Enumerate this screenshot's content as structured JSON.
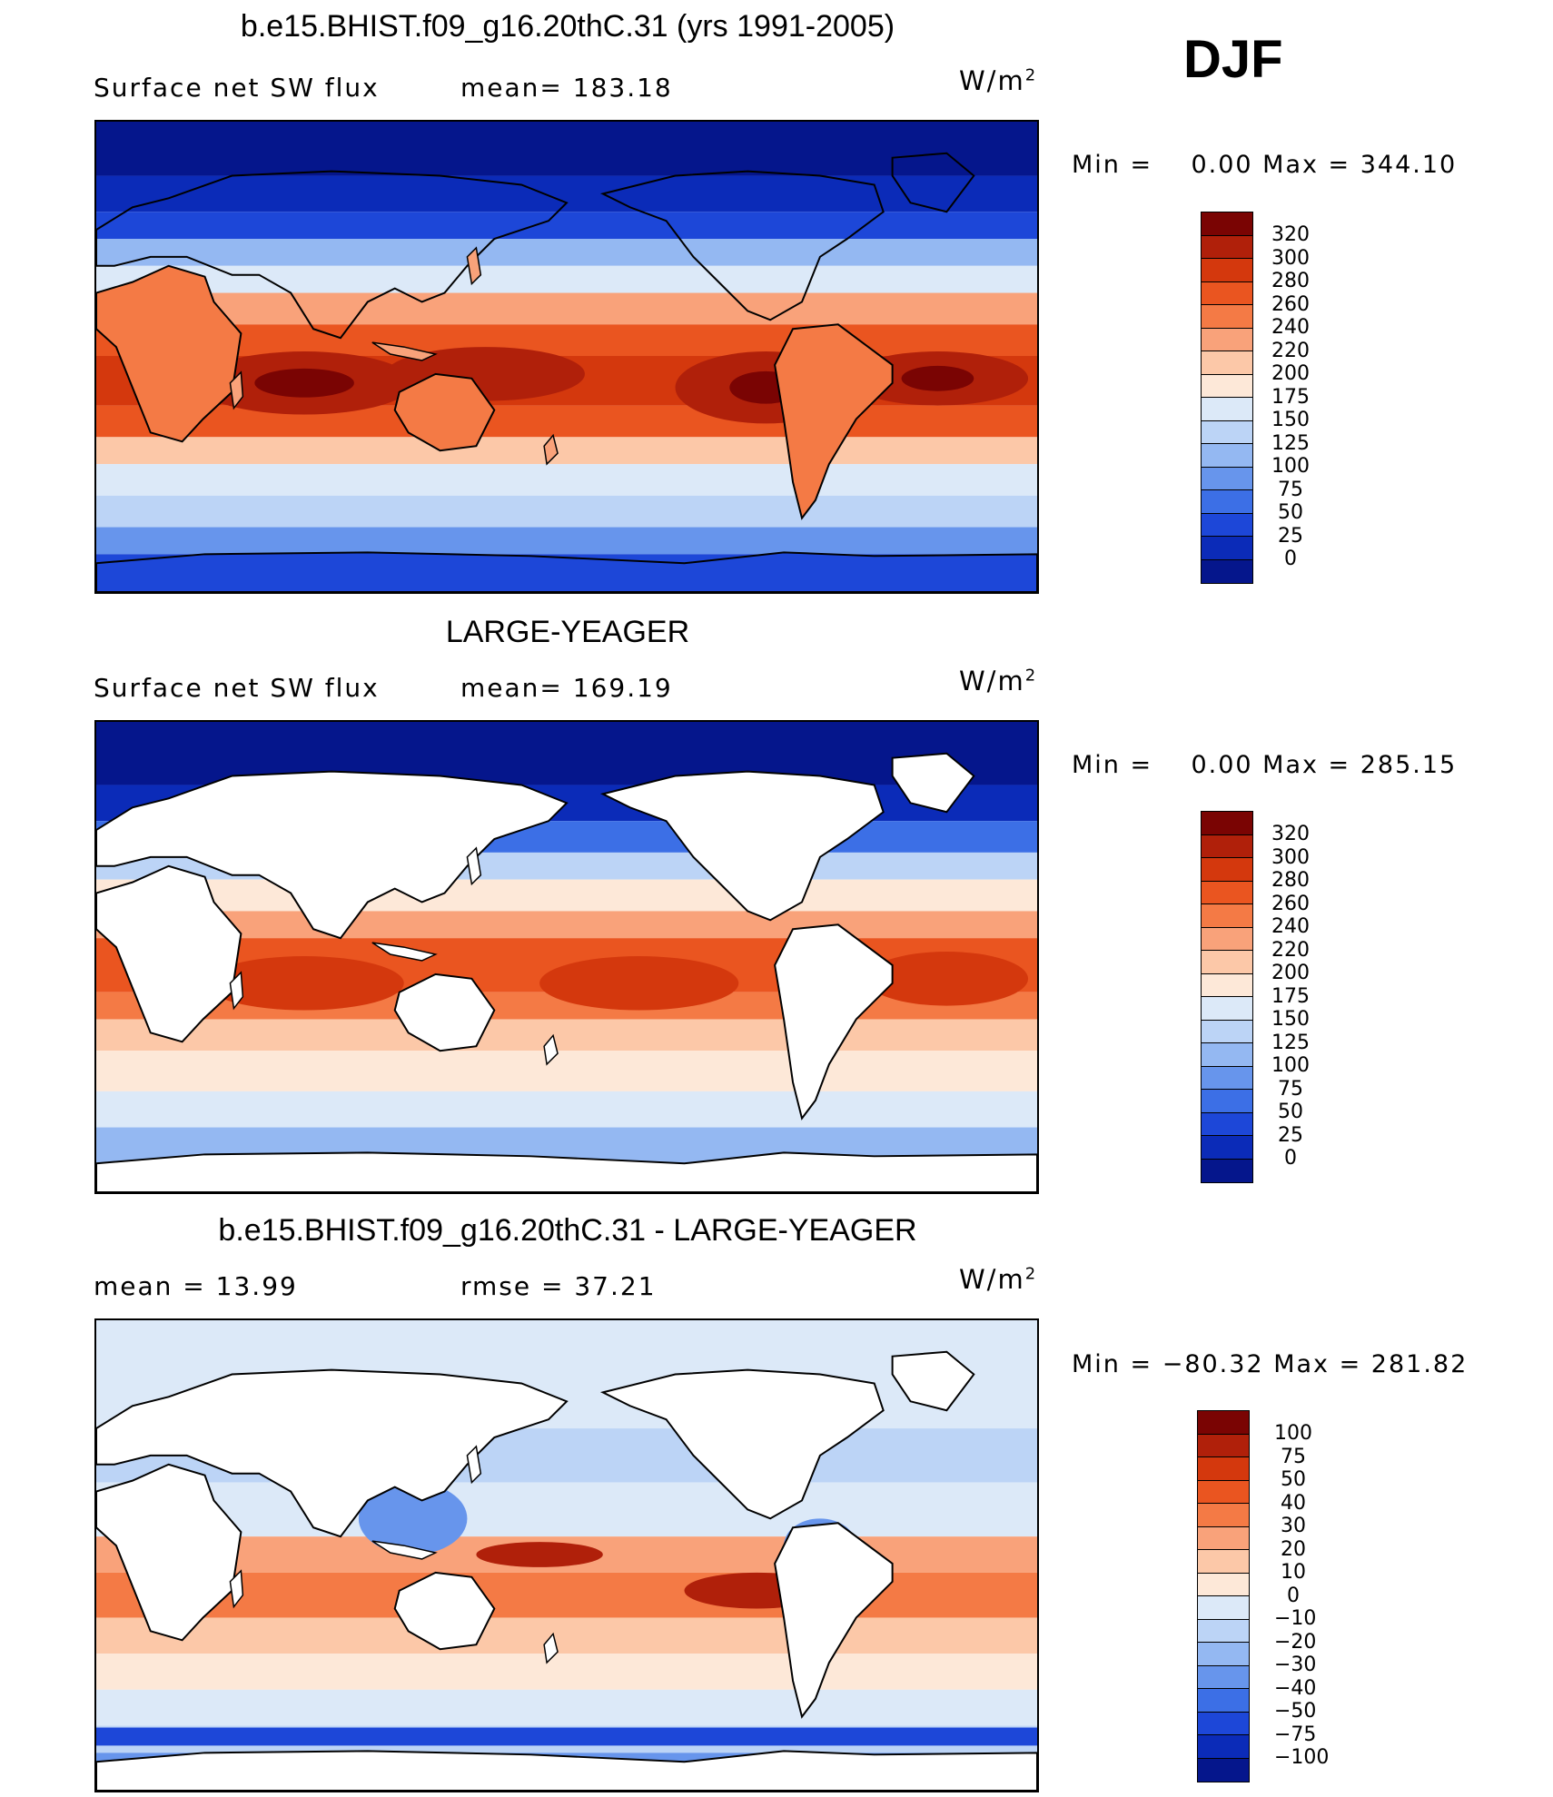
{
  "season": "DJF",
  "panels": [
    {
      "title": "b.e15.BHIST.f09_g16.20thC.31 (yrs 1991-2005)",
      "left_text": "Surface net SW flux",
      "mid_text": "mean= 183.18",
      "units_base": "W/m",
      "units_exp": "2",
      "minmax": "Min =    0.00 Max = 344.10",
      "map_kind": "model"
    },
    {
      "title": "LARGE-YEAGER",
      "left_text": "Surface net SW flux",
      "mid_text": "mean= 169.19",
      "units_base": "W/m",
      "units_exp": "2",
      "minmax": "Min =    0.00 Max = 285.15",
      "map_kind": "obs"
    },
    {
      "title": "b.e15.BHIST.f09_g16.20thC.31 - LARGE-YEAGER",
      "left_text": "mean =   13.99",
      "mid_text": "rmse =   37.21",
      "units_base": "W/m",
      "units_exp": "2",
      "minmax": "Min = −80.32 Max = 281.82",
      "map_kind": "diff"
    }
  ],
  "colorbars": {
    "absolute": {
      "labels": [
        "320",
        "300",
        "280",
        "260",
        "240",
        "220",
        "200",
        "175",
        "150",
        "125",
        "100",
        "75",
        "50",
        "25",
        "0"
      ],
      "colors": [
        "#7a0403",
        "#b0200a",
        "#d4380d",
        "#ea5520",
        "#f47a45",
        "#f9a27a",
        "#fcc8a8",
        "#fde8d8",
        "#dce9f8",
        "#bcd4f6",
        "#94b8f2",
        "#6795ec",
        "#3c6fe6",
        "#1d47d8",
        "#0b2bb8",
        "#05168c"
      ]
    },
    "difference": {
      "labels": [
        "100",
        "75",
        "50",
        "40",
        "30",
        "20",
        "10",
        "0",
        "−10",
        "−20",
        "−30",
        "−40",
        "−50",
        "−75",
        "−100"
      ],
      "colors": [
        "#7a0403",
        "#b0200a",
        "#d4380d",
        "#ea5520",
        "#f47a45",
        "#f9a27a",
        "#fcc8a8",
        "#fde8d8",
        "#dce9f8",
        "#bcd4f6",
        "#94b8f2",
        "#6795ec",
        "#3c6fe6",
        "#1d47d8",
        "#0b2bb8",
        "#05168c"
      ]
    }
  },
  "colors": {
    "ocean_deep_blue": "#0b2bb8",
    "land": "#ffffff",
    "coast": "#000000"
  }
}
